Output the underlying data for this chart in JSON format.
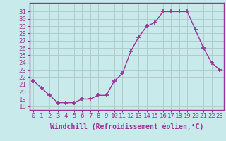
{
  "x": [
    0,
    1,
    2,
    3,
    4,
    5,
    6,
    7,
    8,
    9,
    10,
    11,
    12,
    13,
    14,
    15,
    16,
    17,
    18,
    19,
    20,
    21,
    22,
    23
  ],
  "y": [
    21.5,
    20.5,
    19.5,
    18.5,
    18.5,
    18.5,
    19.0,
    19.0,
    19.5,
    19.5,
    21.5,
    22.5,
    25.5,
    27.5,
    29.0,
    29.5,
    31.0,
    31.0,
    31.0,
    31.0,
    28.5,
    26.0,
    24.0,
    23.0
  ],
  "line_color": "#993399",
  "marker": "+",
  "marker_size": 5,
  "bg_color": "#c8eaea",
  "grid_color": "#b0cccc",
  "xlabel": "Windchill (Refroidissement éolien,°C)",
  "xlabel_fontsize": 7,
  "xlim": [
    -0.5,
    23.5
  ],
  "ylim": [
    17.5,
    32.2
  ],
  "yticks": [
    18,
    19,
    20,
    21,
    22,
    23,
    24,
    25,
    26,
    27,
    28,
    29,
    30,
    31
  ],
  "xticks": [
    0,
    1,
    2,
    3,
    4,
    5,
    6,
    7,
    8,
    9,
    10,
    11,
    12,
    13,
    14,
    15,
    16,
    17,
    18,
    19,
    20,
    21,
    22,
    23
  ],
  "tick_fontsize": 6.5,
  "spine_color": "#993399",
  "label_color": "#993399"
}
